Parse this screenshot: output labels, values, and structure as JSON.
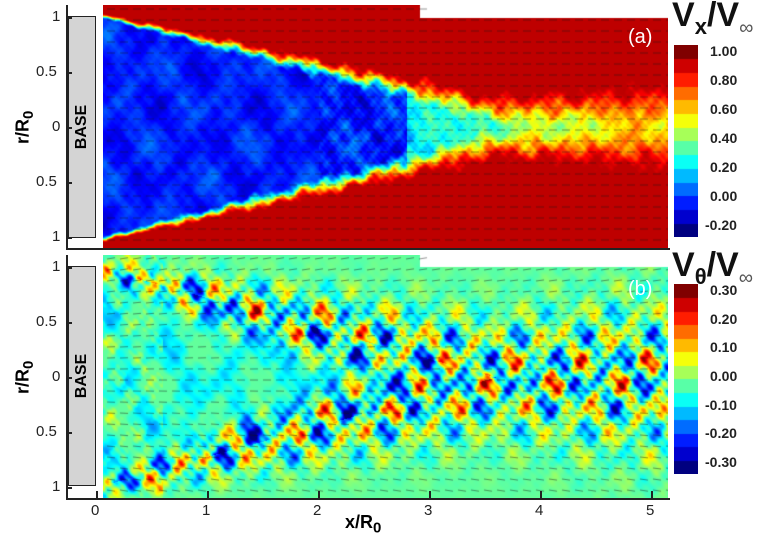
{
  "chart_data": [
    {
      "type": "heatmap",
      "panel_label": "(a)",
      "quantity": "Vx/V∞",
      "colorbar_title_main": "V",
      "colorbar_title_sub": "x",
      "colorbar_title_den": "/V",
      "colorbar_title_den_sub": "∞",
      "colorbar_ticks": [
        "1.00",
        "0.80",
        "0.60",
        "0.40",
        "0.20",
        "0.00",
        "-0.20"
      ],
      "colorbar_range": [
        -0.25,
        1.05
      ],
      "colormap": "jet",
      "ylabel": "r/R",
      "ylabel_sub": "0",
      "yticks": [
        "1",
        "0.5",
        "0",
        "0.5",
        "1"
      ],
      "ylim": [
        -1.1,
        1.1
      ],
      "xlim": [
        -0.27,
        5.17
      ],
      "base_label": "BASE",
      "description_values": {
        "freestream": 1.0,
        "recirculation_core": -0.05,
        "wake_centerline_far": 0.5
      }
    },
    {
      "type": "heatmap",
      "panel_label": "(b)",
      "quantity": "Vθ/V∞",
      "colorbar_title_main": "V",
      "colorbar_title_sub": "θ",
      "colorbar_title_den": "/V",
      "colorbar_title_den_sub": "∞",
      "colorbar_ticks": [
        "0.30",
        "0.20",
        "0.10",
        "0.00",
        "-0.10",
        "-0.20",
        "-0.30"
      ],
      "colorbar_range": [
        -0.35,
        0.35
      ],
      "colormap": "jet",
      "ylabel": "r/R",
      "ylabel_sub": "0",
      "yticks": [
        "1",
        "0.5",
        "0",
        "0.5",
        "1"
      ],
      "ylim": [
        -1.1,
        1.1
      ],
      "xlabel": "x/R",
      "xlabel_sub": "0",
      "xticks": [
        "0",
        "1",
        "2",
        "3",
        "4",
        "5"
      ],
      "xlim": [
        -0.27,
        5.17
      ],
      "base_label": "BASE"
    }
  ]
}
